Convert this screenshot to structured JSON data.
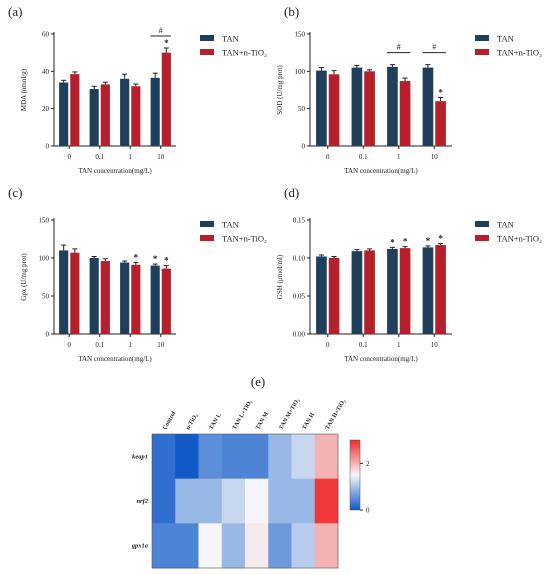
{
  "colors": {
    "tan": "#1f3f5b",
    "tan_tio2": "#b5202a",
    "error": "#222222"
  },
  "chart_data": [
    {
      "id": "a",
      "panel_label": "(a)",
      "type": "bar",
      "ylabel": "MDA (nmol/g)",
      "xlabel": "TAN concentration(mg/L)",
      "categories": [
        "0",
        "0.1",
        "1",
        "10"
      ],
      "ylim": [
        0,
        60
      ],
      "yticks": [
        "0",
        "20",
        "40",
        "60"
      ],
      "series": [
        {
          "name": "TAN",
          "values": [
            34,
            30.5,
            36,
            36.5
          ],
          "errors": [
            1.2,
            1.5,
            2.5,
            2.5
          ],
          "stars": [
            "",
            "",
            "",
            ""
          ]
        },
        {
          "name": "TAN+n-TiO₂",
          "values": [
            38.5,
            33,
            32,
            50
          ],
          "errors": [
            1.2,
            1.2,
            1.2,
            2.5
          ],
          "stars": [
            "",
            "",
            "",
            "*"
          ]
        }
      ],
      "brackets": [
        {
          "category": 3,
          "label": "#"
        }
      ]
    },
    {
      "id": "b",
      "panel_label": "(b)",
      "type": "bar",
      "ylabel": "SOD (U/mg prot)",
      "xlabel": "TAN concentration(mg/L)",
      "categories": [
        "0",
        "0.1",
        "1",
        "10"
      ],
      "ylim": [
        0,
        150
      ],
      "yticks": [
        "0",
        "50",
        "100",
        "150"
      ],
      "series": [
        {
          "name": "TAN",
          "values": [
            101,
            105,
            106,
            105
          ],
          "errors": [
            4,
            3,
            3,
            4
          ],
          "stars": [
            "",
            "",
            "",
            ""
          ]
        },
        {
          "name": "TAN+n-TiO₂",
          "values": [
            96,
            100,
            87,
            60
          ],
          "errors": [
            5,
            2,
            4,
            5
          ],
          "stars": [
            "",
            "",
            "",
            "*"
          ]
        }
      ],
      "brackets": [
        {
          "category": 2,
          "label": "#"
        },
        {
          "category": 3,
          "label": "#"
        }
      ]
    },
    {
      "id": "c",
      "panel_label": "(c)",
      "type": "bar",
      "ylabel": "Gpx (U/mg prot)",
      "xlabel": "TAN concentration(mg/L)",
      "categories": [
        "0",
        "0.1",
        "1",
        "10"
      ],
      "ylim": [
        0,
        150
      ],
      "yticks": [
        "0",
        "50",
        "100",
        "150"
      ],
      "series": [
        {
          "name": "TAN",
          "values": [
            110,
            100,
            94,
            90
          ],
          "errors": [
            7,
            2,
            2,
            2
          ],
          "stars": [
            "",
            "",
            "",
            "*"
          ]
        },
        {
          "name": "TAN+n-TiO₂",
          "values": [
            107,
            96,
            91,
            86
          ],
          "errors": [
            5,
            3,
            3,
            4
          ],
          "stars": [
            "",
            "",
            "*",
            "*"
          ]
        }
      ],
      "brackets": []
    },
    {
      "id": "d",
      "panel_label": "(d)",
      "type": "bar",
      "ylabel": "GSH (μmol/ml)",
      "xlabel": "TAN concentration(mg/L)",
      "categories": [
        "0",
        "0.1",
        "1",
        "10"
      ],
      "ylim": [
        0,
        0.15
      ],
      "yticks": [
        "0.00",
        "0.05",
        "0.10",
        "0.15"
      ],
      "series": [
        {
          "name": "TAN",
          "values": [
            0.102,
            0.109,
            0.112,
            0.114
          ],
          "errors": [
            0.002,
            0.002,
            0.002,
            0.002
          ],
          "stars": [
            "",
            "",
            "*",
            "*"
          ]
        },
        {
          "name": "TAN+n-TiO₂",
          "values": [
            0.1,
            0.11,
            0.113,
            0.117
          ],
          "errors": [
            0.002,
            0.002,
            0.002,
            0.002
          ],
          "stars": [
            "",
            "",
            "*",
            "*"
          ]
        }
      ],
      "brackets": []
    },
    {
      "id": "e",
      "panel_label": "(e)",
      "type": "heatmap",
      "columns": [
        "Control",
        "n-TiO₂",
        "TAN L",
        "TAN L+TiO₂",
        "TAN M",
        "TAN M+TiO₂",
        "TAN H",
        "TAN H+TiO₂"
      ],
      "rows": [
        "keap1",
        "nrf2",
        "gpx1a"
      ],
      "values": [
        [
          0.2,
          -0.2,
          0.5,
          0.4,
          0.4,
          0.9,
          1.2,
          2.0
        ],
        [
          0.2,
          0.9,
          0.9,
          1.2,
          1.5,
          0.9,
          0.9,
          2.9
        ],
        [
          0.4,
          0.4,
          1.5,
          0.9,
          1.6,
          0.6,
          1.1,
          2.0
        ]
      ],
      "colorbar": {
        "min": 0,
        "max": 3,
        "ticks": [
          "0",
          "2"
        ],
        "tick_values": [
          0,
          2
        ]
      }
    }
  ]
}
